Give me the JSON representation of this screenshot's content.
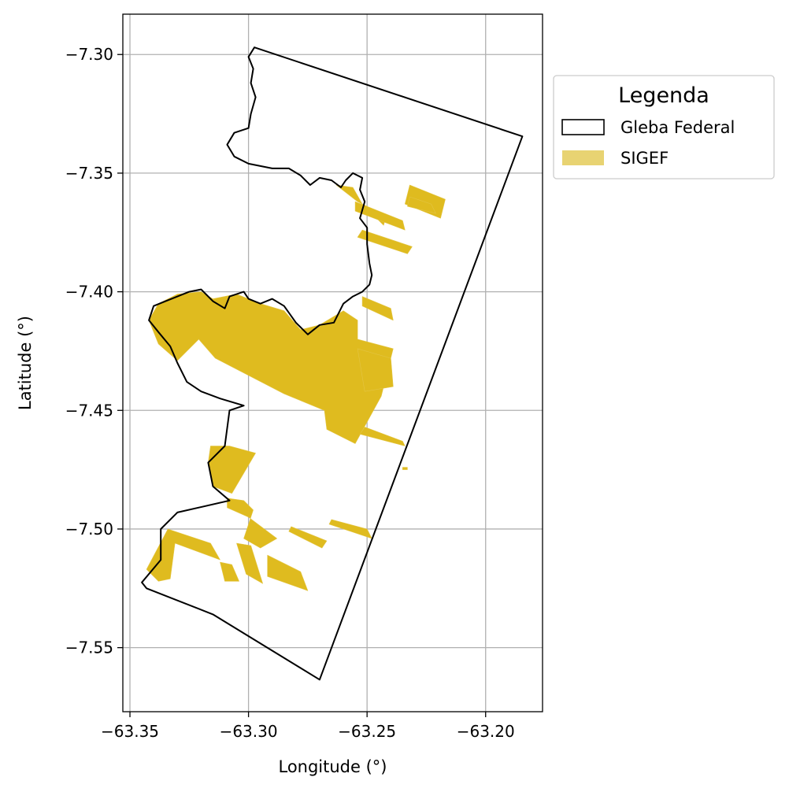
{
  "chart_data": {
    "type": "map",
    "xlabel": "Longitude (°)",
    "ylabel": "Latitude (°)",
    "xlim": [
      -63.353,
      -63.176
    ],
    "ylim": [
      -7.577,
      -7.283
    ],
    "xticks": [
      -63.35,
      -63.3,
      -63.25,
      -63.2
    ],
    "xtick_labels": [
      "−63.35",
      "−63.30",
      "−63.25",
      "−63.20"
    ],
    "yticks": [
      -7.3,
      -7.35,
      -7.4,
      -7.45,
      -7.5,
      -7.55
    ],
    "ytick_labels": [
      "−7.30",
      "−7.35",
      "−7.40",
      "−7.45",
      "−7.50",
      "−7.55"
    ],
    "grid": true,
    "legend": {
      "title": "Legenda",
      "placement": "outside upper right",
      "entries": [
        {
          "label": "Gleba Federal",
          "style": "outline",
          "color": "#000000"
        },
        {
          "label": "SIGEF",
          "style": "fill",
          "color": "#e8d372"
        }
      ]
    },
    "colors": {
      "sigef_fill": "#dfbb1f",
      "gleba_outline": "#000000",
      "grid": "#b0b0b0"
    },
    "gleba_federal": [
      [
        -63.2975,
        -7.297
      ],
      [
        -63.1845,
        -7.3345
      ],
      [
        -63.27,
        -7.5635
      ],
      [
        -63.315,
        -7.536
      ],
      [
        -63.343,
        -7.525
      ],
      [
        -63.345,
        -7.5225
      ],
      [
        -63.337,
        -7.513
      ],
      [
        -63.337,
        -7.5
      ],
      [
        -63.33,
        -7.493
      ],
      [
        -63.308,
        -7.488
      ],
      [
        -63.315,
        -7.482
      ],
      [
        -63.317,
        -7.472
      ],
      [
        -63.31,
        -7.465
      ],
      [
        -63.308,
        -7.45
      ],
      [
        -63.302,
        -7.448
      ],
      [
        -63.312,
        -7.445
      ],
      [
        -63.32,
        -7.442
      ],
      [
        -63.326,
        -7.438
      ],
      [
        -63.33,
        -7.43
      ],
      [
        -63.333,
        -7.423
      ],
      [
        -63.338,
        -7.417
      ],
      [
        -63.342,
        -7.412
      ],
      [
        -63.34,
        -7.406
      ],
      [
        -63.335,
        -7.404
      ],
      [
        -63.33,
        -7.402
      ],
      [
        -63.325,
        -7.4
      ],
      [
        -63.32,
        -7.399
      ],
      [
        -63.315,
        -7.404
      ],
      [
        -63.31,
        -7.407
      ],
      [
        -63.308,
        -7.402
      ],
      [
        -63.302,
        -7.4
      ],
      [
        -63.3,
        -7.403
      ],
      [
        -63.295,
        -7.405
      ],
      [
        -63.29,
        -7.403
      ],
      [
        -63.285,
        -7.406
      ],
      [
        -63.28,
        -7.413
      ],
      [
        -63.275,
        -7.418
      ],
      [
        -63.27,
        -7.414
      ],
      [
        -63.264,
        -7.413
      ],
      [
        -63.26,
        -7.405
      ],
      [
        -63.256,
        -7.402
      ],
      [
        -63.252,
        -7.4
      ],
      [
        -63.249,
        -7.397
      ],
      [
        -63.248,
        -7.393
      ],
      [
        -63.249,
        -7.388
      ],
      [
        -63.25,
        -7.38
      ],
      [
        -63.25,
        -7.373
      ],
      [
        -63.253,
        -7.369
      ],
      [
        -63.251,
        -7.362
      ],
      [
        -63.253,
        -7.357
      ],
      [
        -63.252,
        -7.352
      ],
      [
        -63.256,
        -7.35
      ],
      [
        -63.259,
        -7.353
      ],
      [
        -63.261,
        -7.356
      ],
      [
        -63.265,
        -7.353
      ],
      [
        -63.27,
        -7.352
      ],
      [
        -63.274,
        -7.355
      ],
      [
        -63.278,
        -7.351
      ],
      [
        -63.283,
        -7.348
      ],
      [
        -63.29,
        -7.348
      ],
      [
        -63.3,
        -7.346
      ],
      [
        -63.306,
        -7.343
      ],
      [
        -63.309,
        -7.338
      ],
      [
        -63.306,
        -7.333
      ],
      [
        -63.3,
        -7.331
      ],
      [
        -63.299,
        -7.325
      ],
      [
        -63.297,
        -7.318
      ],
      [
        -63.299,
        -7.312
      ],
      [
        -63.298,
        -7.306
      ],
      [
        -63.3,
        -7.301
      ]
    ],
    "sigef": [
      [
        [
          -63.33,
          -7.401
        ],
        [
          -63.32,
          -7.4
        ],
        [
          -63.315,
          -7.403
        ],
        [
          -63.305,
          -7.401
        ],
        [
          -63.295,
          -7.405
        ],
        [
          -63.285,
          -7.408
        ],
        [
          -63.278,
          -7.416
        ],
        [
          -63.27,
          -7.414
        ],
        [
          -63.26,
          -7.408
        ],
        [
          -63.254,
          -7.412
        ],
        [
          -63.254,
          -7.42
        ],
        [
          -63.239,
          -7.424
        ],
        [
          -63.244,
          -7.444
        ],
        [
          -63.255,
          -7.464
        ],
        [
          -63.267,
          -7.458
        ],
        [
          -63.268,
          -7.45
        ],
        [
          -63.285,
          -7.443
        ],
        [
          -63.314,
          -7.428
        ],
        [
          -63.321,
          -7.42
        ],
        [
          -63.33,
          -7.429
        ],
        [
          -63.338,
          -7.422
        ],
        [
          -63.342,
          -7.412
        ],
        [
          -63.338,
          -7.405
        ]
      ],
      [
        [
          -63.316,
          -7.465
        ],
        [
          -63.308,
          -7.465
        ],
        [
          -63.297,
          -7.468
        ],
        [
          -63.307,
          -7.485
        ],
        [
          -63.315,
          -7.482
        ],
        [
          -63.317,
          -7.472
        ]
      ],
      [
        [
          -63.254,
          -7.424
        ],
        [
          -63.24,
          -7.428
        ],
        [
          -63.239,
          -7.44
        ],
        [
          -63.251,
          -7.442
        ]
      ],
      [
        [
          -63.251,
          -7.457
        ],
        [
          -63.235,
          -7.463
        ],
        [
          -63.234,
          -7.465
        ],
        [
          -63.253,
          -7.46
        ]
      ],
      [
        [
          -63.235,
          -7.474
        ],
        [
          -63.233,
          -7.474
        ],
        [
          -63.233,
          -7.475
        ],
        [
          -63.235,
          -7.475
        ]
      ],
      [
        [
          -63.309,
          -7.487
        ],
        [
          -63.302,
          -7.488
        ],
        [
          -63.298,
          -7.492
        ],
        [
          -63.302,
          -7.504
        ],
        [
          -63.295,
          -7.508
        ],
        [
          -63.288,
          -7.504
        ],
        [
          -63.3,
          -7.495
        ],
        [
          -63.309,
          -7.491
        ]
      ],
      [
        [
          -63.282,
          -7.499
        ],
        [
          -63.267,
          -7.505
        ],
        [
          -63.269,
          -7.508
        ],
        [
          -63.283,
          -7.501
        ]
      ],
      [
        [
          -63.265,
          -7.496
        ],
        [
          -63.25,
          -7.5
        ],
        [
          -63.248,
          -7.504
        ],
        [
          -63.266,
          -7.498
        ]
      ],
      [
        [
          -63.334,
          -7.5
        ],
        [
          -63.316,
          -7.506
        ],
        [
          -63.312,
          -7.513
        ],
        [
          -63.331,
          -7.506
        ],
        [
          -63.333,
          -7.521
        ],
        [
          -63.338,
          -7.522
        ],
        [
          -63.343,
          -7.517
        ]
      ],
      [
        [
          -63.305,
          -7.506
        ],
        [
          -63.299,
          -7.507
        ],
        [
          -63.294,
          -7.523
        ],
        [
          -63.301,
          -7.519
        ]
      ],
      [
        [
          -63.312,
          -7.514
        ],
        [
          -63.307,
          -7.515
        ],
        [
          -63.304,
          -7.522
        ],
        [
          -63.31,
          -7.522
        ]
      ],
      [
        [
          -63.292,
          -7.511
        ],
        [
          -63.278,
          -7.518
        ],
        [
          -63.275,
          -7.526
        ],
        [
          -63.292,
          -7.52
        ]
      ],
      [
        [
          -63.263,
          -7.355
        ],
        [
          -63.256,
          -7.356
        ],
        [
          -63.252,
          -7.363
        ],
        [
          -63.243,
          -7.372
        ],
        [
          -63.242,
          -7.368
        ],
        [
          -63.254,
          -7.362
        ]
      ],
      [
        [
          -63.255,
          -7.362
        ],
        [
          -63.235,
          -7.37
        ],
        [
          -63.234,
          -7.374
        ],
        [
          -63.255,
          -7.366
        ]
      ],
      [
        [
          -63.232,
          -7.355
        ],
        [
          -63.217,
          -7.361
        ],
        [
          -63.219,
          -7.369
        ],
        [
          -63.234,
          -7.363
        ]
      ],
      [
        [
          -63.232,
          -7.36
        ],
        [
          -63.223,
          -7.363
        ],
        [
          -63.221,
          -7.367
        ],
        [
          -63.233,
          -7.364
        ]
      ],
      [
        [
          -63.252,
          -7.374
        ],
        [
          -63.231,
          -7.381
        ],
        [
          -63.233,
          -7.384
        ],
        [
          -63.254,
          -7.377
        ]
      ],
      [
        [
          -63.252,
          -7.402
        ],
        [
          -63.24,
          -7.407
        ],
        [
          -63.239,
          -7.412
        ],
        [
          -63.252,
          -7.406
        ]
      ]
    ]
  }
}
